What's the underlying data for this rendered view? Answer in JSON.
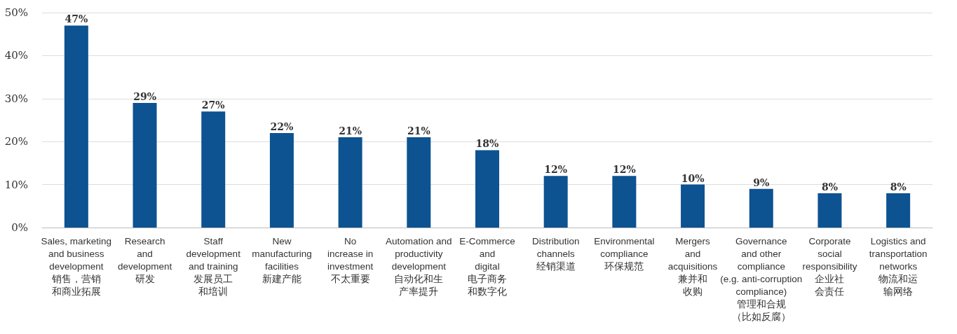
{
  "chart_data": {
    "type": "bar",
    "categories": [
      "Sales, marketing\nand business\ndevelopment\n销售，营销和商业拓展",
      "Research\nand\ndevelopment\n研发",
      "Staff\ndevelopment\nand training\n发展员工和培训",
      "New\nmanufacturing\nfacilities\n新建产能",
      "No\nincrease in\ninvestment\n不太重要",
      "Automation and\nproductivity\ndevelopment\n自动化和生产率提升",
      "E-Commerce\nand\ndigital\n电子商务和数字化",
      "Distribution\nchannels\n经销渠道",
      "Environmental\ncompliance\n环保规范",
      "Mergers\nand\nacquisitions\n兼并和收购",
      "Governance\nand other\ncompliance\n(e.g. anti-corruption\ncompliance)\n管理和合规（比如反腐）",
      "Corporate\nsocial\nresponsibility\n企业社会责任",
      "Logistics and\ntransportation\nnetworks\n物流和运输网络"
    ],
    "values": [
      47,
      29,
      27,
      22,
      21,
      21,
      18,
      12,
      12,
      10,
      9,
      8,
      8
    ],
    "value_labels": [
      "47%",
      "29%",
      "27%",
      "22%",
      "21%",
      "21%",
      "18%",
      "12%",
      "12%",
      "10%",
      "9%",
      "8%",
      "8%"
    ],
    "color": "#0d5291",
    "ylim": [
      0,
      50
    ],
    "yticks": [
      {
        "value": 0,
        "label": "0%"
      },
      {
        "value": 10,
        "label": "10%"
      },
      {
        "value": 20,
        "label": "20%"
      },
      {
        "value": 30,
        "label": "30%"
      },
      {
        "value": 40,
        "label": "40%"
      },
      {
        "value": 50,
        "label": "50%"
      }
    ],
    "grid": "y"
  }
}
